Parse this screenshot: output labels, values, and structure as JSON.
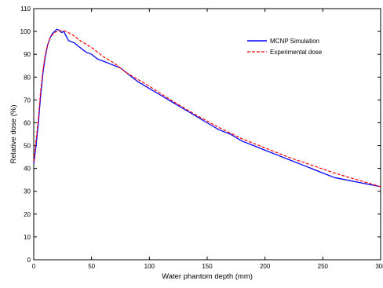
{
  "chart_data": {
    "type": "line",
    "title": "",
    "xlabel": "Water phantom depth (mm)",
    "ylabel": "Relative dose (%)",
    "xlim": [
      0,
      300
    ],
    "ylim": [
      0,
      110
    ],
    "x_ticks": [
      0,
      50,
      100,
      150,
      200,
      250,
      300
    ],
    "y_ticks": [
      0,
      10,
      20,
      30,
      40,
      50,
      60,
      70,
      80,
      90,
      100,
      110
    ],
    "grid": false,
    "legend_position": "top-right",
    "series": [
      {
        "name": "MCNP Simulation",
        "color": "#0000ff",
        "line_style": "solid",
        "x": [
          0,
          2,
          4,
          6,
          8,
          10,
          12,
          14,
          16,
          18,
          20,
          22,
          24,
          26,
          28,
          30,
          35,
          40,
          45,
          50,
          55,
          60,
          65,
          70,
          75,
          80,
          90,
          100,
          110,
          120,
          130,
          140,
          150,
          160,
          170,
          180,
          190,
          200,
          210,
          220,
          230,
          240,
          250,
          260,
          270,
          280,
          290,
          300
        ],
        "y": [
          42,
          50,
          60,
          72,
          82,
          89,
          94,
          97,
          99,
          100,
          101,
          100.5,
          99.5,
          100,
          98,
          96,
          95,
          93,
          91,
          90,
          88,
          87,
          86,
          85,
          84,
          82,
          78,
          75,
          72,
          69,
          66,
          63,
          60,
          57,
          55,
          52,
          50,
          48,
          46,
          44,
          42,
          40,
          38,
          36,
          35,
          34,
          33,
          32
        ]
      },
      {
        "name": "Experimental dose",
        "color": "#ff0000",
        "line_style": "dashed",
        "x": [
          0,
          2,
          4,
          6,
          8,
          10,
          12,
          14,
          16,
          18,
          20,
          22,
          25,
          28,
          30,
          35,
          40,
          50,
          60,
          70,
          80,
          90,
          100,
          120,
          140,
          160,
          180,
          200,
          220,
          240,
          260,
          280,
          300
        ],
        "y": [
          43,
          52,
          62,
          74,
          83,
          90,
          94,
          97,
          98.5,
          99.5,
          100,
          100.3,
          100.4,
          100,
          99.5,
          98,
          96,
          93,
          89,
          86,
          82,
          79,
          76,
          69.5,
          63.5,
          58,
          53,
          49,
          45,
          41.5,
          38,
          35,
          32
        ]
      }
    ]
  }
}
